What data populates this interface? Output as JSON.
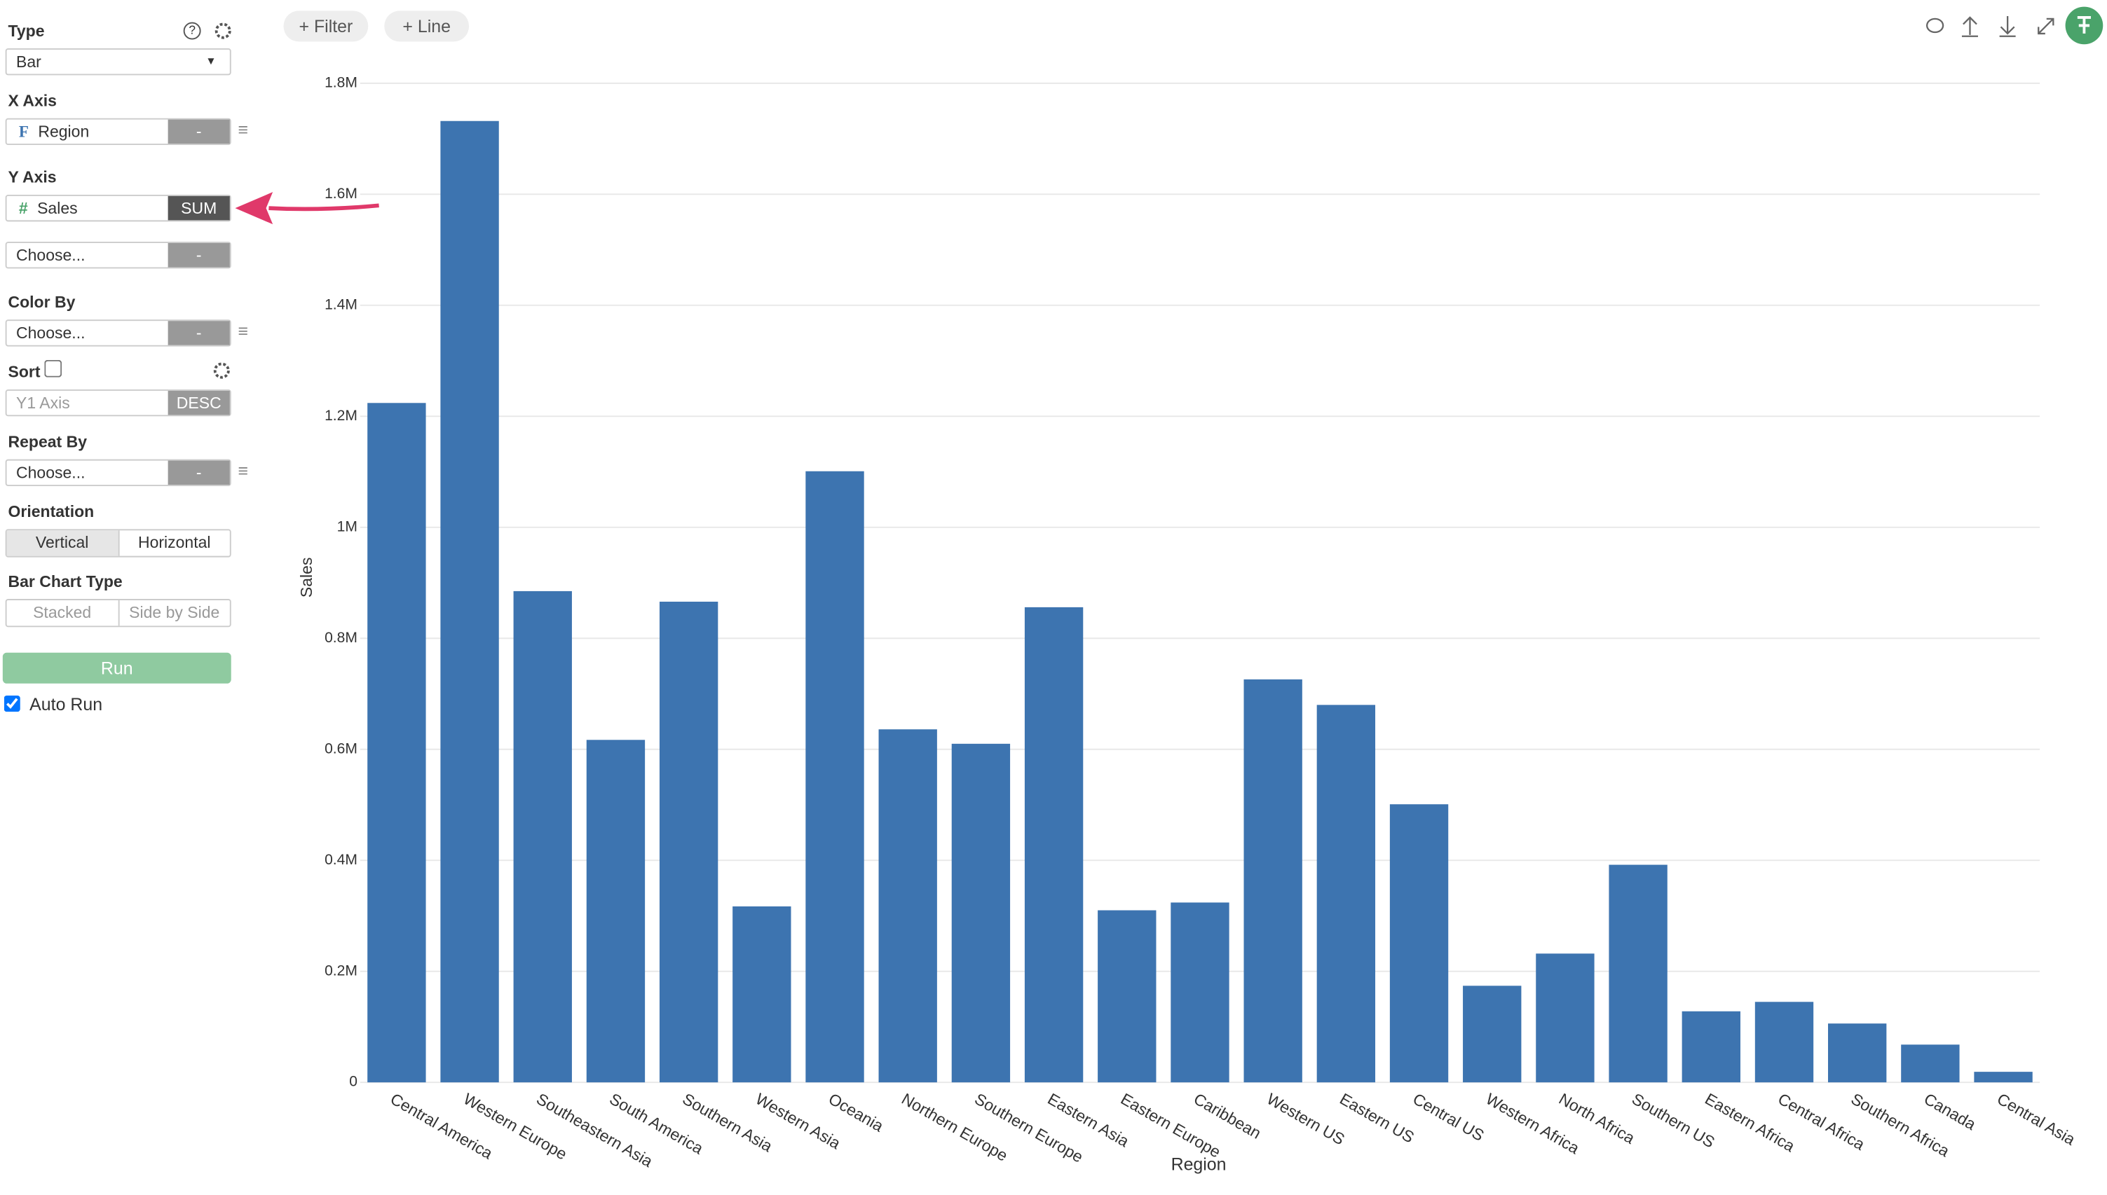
{
  "toolbar": {
    "buttons": [
      "+ Filter",
      "+ Line"
    ]
  },
  "sidebar": {
    "type_label": "Type",
    "type_value": "Bar",
    "x_axis_label": "X Axis",
    "x_axis_icon": "F",
    "x_axis_field": "Region",
    "x_axis_agg": "-",
    "y_axis_label": "Y Axis",
    "y_axis_icon": "#",
    "y_axis_field": "Sales",
    "y_axis_agg": "SUM",
    "y_axis2_field": "Choose...",
    "y_axis2_agg": "-",
    "color_by_label": "Color By",
    "color_by_field": "Choose...",
    "color_by_agg": "-",
    "sort_label": "Sort",
    "sort_field": "Y1 Axis",
    "sort_order": "DESC",
    "repeat_by_label": "Repeat By",
    "repeat_by_field": "Choose...",
    "repeat_by_agg": "-",
    "orientation_label": "Orientation",
    "orientation_options": [
      "Vertical",
      "Horizontal"
    ],
    "bar_type_label": "Bar Chart Type",
    "bar_type_options": [
      "Stacked",
      "Side by Side"
    ],
    "run": "Run",
    "auto_run": "Auto Run"
  },
  "chart_data": {
    "type": "bar",
    "x_label": "Region",
    "y_label": "Sales",
    "color": "#3d74b0",
    "grid": true,
    "categories": [
      "Central America",
      "Western Europe",
      "Southeastern Asia",
      "South America",
      "Southern Asia",
      "Western Asia",
      "Oceania",
      "Northern Europe",
      "Southern Europe",
      "Eastern Asia",
      "Eastern Europe",
      "Caribbean",
      "Western US",
      "Eastern US",
      "Central US",
      "Western Africa",
      "North Africa",
      "Southern US",
      "Eastern Africa",
      "Central Africa",
      "Southern Africa",
      "Canada",
      "Central Asia"
    ],
    "values": [
      1224000,
      1732000,
      885000,
      617000,
      866000,
      317000,
      1101000,
      636000,
      610000,
      856000,
      310000,
      324000,
      726000,
      680000,
      501000,
      174000,
      232000,
      392000,
      128000,
      145000,
      106000,
      68000,
      19000
    ],
    "ylim": [
      0,
      1800000
    ],
    "yticks": [
      0,
      {
        "value": 200000,
        "label": "0.2M"
      },
      {
        "value": 400000,
        "label": "0.4M"
      },
      {
        "value": 600000,
        "label": "0.6M"
      },
      {
        "value": 800000,
        "label": "0.8M"
      },
      {
        "value": 1000000,
        "label": "1M"
      },
      {
        "value": 1200000,
        "label": "1.2M"
      },
      {
        "value": 1400000,
        "label": "1.4M"
      },
      {
        "value": 1600000,
        "label": "1.6M"
      },
      {
        "value": 1800000,
        "label": "1.8M"
      }
    ]
  }
}
